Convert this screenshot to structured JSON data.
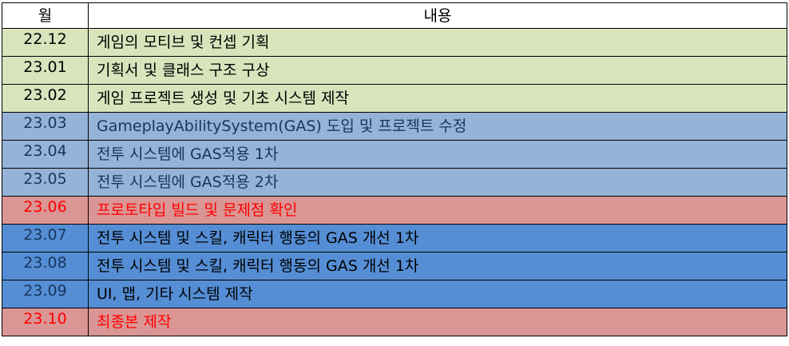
{
  "headers": {
    "month": "월",
    "content": "내용"
  },
  "rows": [
    {
      "month": "22.12",
      "content": "게임의 모티브 및 컨셉 기획",
      "theme": "green"
    },
    {
      "month": "23.01",
      "content": "기획서 및 클래스 구조 구상",
      "theme": "green"
    },
    {
      "month": "23.02",
      "content": "게임 프로젝트 생성 및 기초 시스템 제작",
      "theme": "green"
    },
    {
      "month": "23.03",
      "content": "GameplayAbilitySystem(GAS) 도입 및 프로젝트 수정",
      "theme": "lightblue"
    },
    {
      "month": "23.04",
      "content": "전투 시스템에 GAS적용 1차",
      "theme": "lightblue"
    },
    {
      "month": "23.05",
      "content": "전투 시스템에 GAS적용 2차",
      "theme": "lightblue"
    },
    {
      "month": "23.06",
      "content": "프로토타입 빌드 및 문제점 확인",
      "theme": "red"
    },
    {
      "month": "23.07",
      "content": "전투 시스템 및 스킬, 캐릭터 행동의 GAS 개선 1차",
      "theme": "blue"
    },
    {
      "month": "23.08",
      "content": "전투 시스템 및 스킬, 캐릭터 행동의 GAS 개선 1차",
      "theme": "blue"
    },
    {
      "month": "23.09",
      "content": "UI, 맵, 기타 시스템 제작",
      "theme": "blue"
    },
    {
      "month": "23.10",
      "content": "최종본 제작",
      "theme": "red"
    }
  ],
  "colors": {
    "green": "#d8e4bc",
    "lightblue": "#95b3d7",
    "red": "#da9694",
    "blue": "#558ed5",
    "red_text": "#ff0000",
    "navy_text": "#17365d"
  }
}
